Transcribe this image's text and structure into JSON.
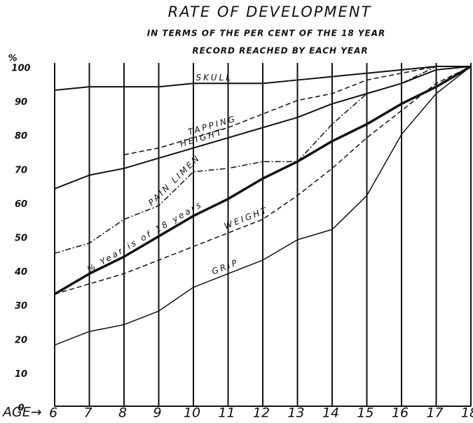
{
  "chart_data": {
    "type": "line",
    "title": "RATE OF DEVELOPMENT",
    "subtitle": [
      "IN TERMS OF THE PER CENT OF THE 18 YEAR",
      "RECORD REACHED BY EACH YEAR"
    ],
    "y_label": "%",
    "x_label": "AGE→",
    "x": [
      6,
      7,
      8,
      9,
      10,
      11,
      12,
      13,
      14,
      15,
      16,
      17,
      18
    ],
    "xlim": [
      6,
      18
    ],
    "xticks": [
      6,
      7,
      8,
      9,
      10,
      11,
      12,
      13,
      14,
      15,
      16,
      17,
      18
    ],
    "ylim": [
      0,
      100
    ],
    "yticks": [
      0,
      10,
      20,
      30,
      40,
      50,
      60,
      70,
      80,
      90,
      100
    ],
    "grid": "x",
    "series": [
      {
        "name": "SKULL",
        "color": "#111",
        "style": "solid",
        "width": 2,
        "values": [
          93,
          94,
          94,
          94,
          95,
          95,
          95,
          96,
          97,
          98,
          99,
          100,
          100
        ]
      },
      {
        "name": "TAPPING",
        "color": "#111",
        "style": "dashed",
        "width": 1.5,
        "values": [
          null,
          null,
          74,
          76,
          79,
          82,
          86,
          90,
          92,
          96,
          98,
          100,
          100
        ]
      },
      {
        "name": "HEIGHT",
        "color": "#111",
        "style": "solid",
        "width": 2,
        "values": [
          64,
          68,
          70,
          73,
          76,
          79,
          82,
          85,
          89,
          92,
          95,
          99,
          100
        ]
      },
      {
        "name": "PAIN LIMEN",
        "color": "#111",
        "style": "dashdot",
        "width": 1.5,
        "values": [
          45,
          48,
          55,
          59,
          69,
          70,
          72,
          72,
          83,
          92,
          95,
          100,
          100
        ]
      },
      {
        "name": "% Year is of 18 years",
        "color": "#111",
        "style": "solid",
        "width": 3.5,
        "values": [
          33,
          39,
          44,
          50,
          56,
          61,
          67,
          72,
          78,
          83,
          89,
          94,
          100
        ]
      },
      {
        "name": "WEIGHT",
        "color": "#111",
        "style": "dashed",
        "width": 1.5,
        "values": [
          33,
          36,
          39,
          43,
          47,
          51,
          55,
          62,
          70,
          79,
          87,
          95,
          100
        ]
      },
      {
        "name": "GRIP",
        "color": "#111",
        "style": "solid",
        "width": 1.5,
        "values": [
          18,
          22,
          24,
          28,
          35,
          39,
          43,
          49,
          52,
          62,
          80,
          92,
          100
        ]
      }
    ]
  }
}
